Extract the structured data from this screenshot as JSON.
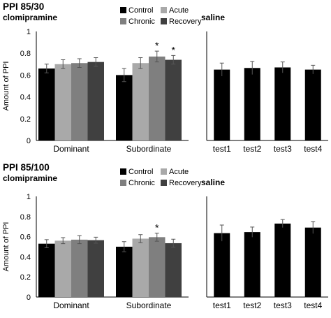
{
  "panel_titles": [
    {
      "title": "PPI 85/30",
      "drug": "clomipramine",
      "control_label": "saline"
    },
    {
      "title": "PPI 85/100",
      "drug": "clomipramine",
      "control_label": "saline"
    }
  ],
  "legend": [
    {
      "label": "Control",
      "color": "#000000"
    },
    {
      "label": "Acute",
      "color": "#a9a9a9"
    },
    {
      "label": "Chronic",
      "color": "#7f7f7f"
    },
    {
      "label": "Recovery",
      "color": "#404040"
    }
  ],
  "significance_marker": "*",
  "chart_data": [
    {
      "type": "bar",
      "title": "PPI 85/30 clomipramine",
      "ylabel": "Amount of PPI",
      "ylim": [
        0,
        1
      ],
      "yticks": [
        "0",
        "0.2",
        "0.4",
        "0.6",
        "0.8",
        "1"
      ],
      "categories": [
        "Dominant",
        "Subordinate"
      ],
      "series": [
        {
          "name": "Control",
          "values": [
            0.66,
            0.6
          ],
          "errors": [
            0.04,
            0.06
          ],
          "significant": [
            false,
            false
          ]
        },
        {
          "name": "Acute",
          "values": [
            0.7,
            0.71
          ],
          "errors": [
            0.04,
            0.05
          ],
          "significant": [
            false,
            false
          ]
        },
        {
          "name": "Chronic",
          "values": [
            0.71,
            0.77
          ],
          "errors": [
            0.04,
            0.05
          ],
          "significant": [
            false,
            true
          ]
        },
        {
          "name": "Recovery",
          "values": [
            0.72,
            0.74
          ],
          "errors": [
            0.04,
            0.04
          ],
          "significant": [
            false,
            true
          ]
        }
      ]
    },
    {
      "type": "bar",
      "title": "PPI 85/30 saline",
      "ylim": [
        0,
        1
      ],
      "categories": [
        "test1",
        "test2",
        "test3",
        "test4"
      ],
      "values": [
        0.65,
        0.665,
        0.67,
        0.65
      ],
      "errors": [
        0.06,
        0.06,
        0.05,
        0.04
      ],
      "color": "#000000"
    },
    {
      "type": "bar",
      "title": "PPI 85/100 clomipramine",
      "ylabel": "Amount of PPI",
      "ylim": [
        0,
        1
      ],
      "yticks": [
        "0",
        "0.2",
        "0.4",
        "0.6",
        "0.8",
        "1"
      ],
      "categories": [
        "Dominant",
        "Subordinate"
      ],
      "series": [
        {
          "name": "Control",
          "values": [
            0.53,
            0.5
          ],
          "errors": [
            0.04,
            0.05
          ],
          "significant": [
            false,
            false
          ]
        },
        {
          "name": "Acute",
          "values": [
            0.56,
            0.58
          ],
          "errors": [
            0.03,
            0.04
          ],
          "significant": [
            false,
            false
          ]
        },
        {
          "name": "Chronic",
          "values": [
            0.57,
            0.595
          ],
          "errors": [
            0.04,
            0.04
          ],
          "significant": [
            false,
            true
          ]
        },
        {
          "name": "Recovery",
          "values": [
            0.565,
            0.535
          ],
          "errors": [
            0.03,
            0.04
          ],
          "significant": [
            false,
            false
          ]
        }
      ]
    },
    {
      "type": "bar",
      "title": "PPI 85/100 saline",
      "ylim": [
        0,
        1
      ],
      "categories": [
        "test1",
        "test2",
        "test3",
        "test4"
      ],
      "values": [
        0.635,
        0.645,
        0.73,
        0.69
      ],
      "errors": [
        0.08,
        0.05,
        0.04,
        0.06
      ],
      "color": "#000000"
    }
  ]
}
